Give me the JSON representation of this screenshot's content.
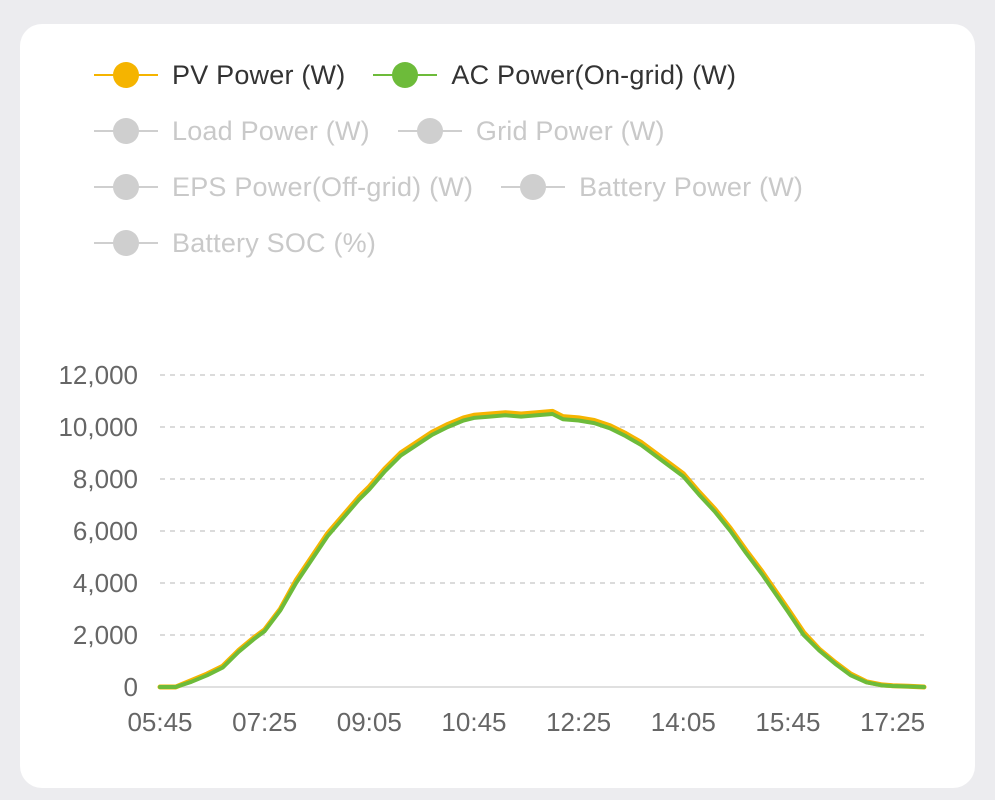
{
  "legend": {
    "items": [
      {
        "label": "PV Power (W)",
        "color": "#f5b400",
        "active": true
      },
      {
        "label": "AC Power(On-grid) (W)",
        "color": "#6dbb3a",
        "active": true
      },
      {
        "label": "Load Power (W)",
        "color": "#cfcfcf",
        "active": false
      },
      {
        "label": "Grid Power (W)",
        "color": "#cfcfcf",
        "active": false
      },
      {
        "label": "EPS Power(Off-grid) (W)",
        "color": "#cfcfcf",
        "active": false
      },
      {
        "label": "Battery Power (W)",
        "color": "#cfcfcf",
        "active": false
      },
      {
        "label": "Battery SOC (%)",
        "color": "#cfcfcf",
        "active": false
      }
    ]
  },
  "chart_data": {
    "type": "line",
    "title": "",
    "xlabel": "",
    "ylabel": "",
    "ylim": [
      0,
      12000
    ],
    "yticks": [
      "0",
      "2,000",
      "4,000",
      "6,000",
      "8,000",
      "10,000",
      "12,000"
    ],
    "xticks": [
      "05:45",
      "07:25",
      "09:05",
      "10:45",
      "12:25",
      "14:05",
      "15:45",
      "17:25"
    ],
    "grid": "horizontal-dashed",
    "x": [
      "05:45",
      "06:00",
      "06:15",
      "06:30",
      "06:45",
      "07:00",
      "07:15",
      "07:25",
      "07:40",
      "07:55",
      "08:10",
      "08:25",
      "08:40",
      "08:55",
      "09:05",
      "09:20",
      "09:35",
      "09:50",
      "10:05",
      "10:20",
      "10:35",
      "10:45",
      "11:00",
      "11:15",
      "11:30",
      "11:45",
      "12:00",
      "12:10",
      "12:25",
      "12:40",
      "12:55",
      "13:10",
      "13:25",
      "13:40",
      "14:05",
      "14:20",
      "14:35",
      "14:50",
      "15:05",
      "15:20",
      "15:45",
      "16:00",
      "16:15",
      "16:30",
      "16:45",
      "17:00",
      "17:15",
      "17:25",
      "17:40",
      "17:55"
    ],
    "series": [
      {
        "name": "PV Power (W)",
        "color": "#f5b400",
        "values": [
          0,
          0,
          250,
          500,
          800,
          1400,
          1900,
          2200,
          3000,
          4100,
          5000,
          5900,
          6600,
          7300,
          7700,
          8400,
          9000,
          9400,
          9800,
          10100,
          10350,
          10450,
          10500,
          10550,
          10500,
          10550,
          10600,
          10400,
          10350,
          10250,
          10050,
          9750,
          9400,
          8950,
          8200,
          7500,
          6850,
          6100,
          5250,
          4450,
          3000,
          2100,
          1450,
          950,
          500,
          200,
          80,
          50,
          30,
          0
        ]
      },
      {
        "name": "AC Power(On-grid) (W)",
        "color": "#6dbb3a",
        "values": [
          0,
          0,
          200,
          450,
          750,
          1350,
          1850,
          2150,
          2950,
          4000,
          4900,
          5800,
          6500,
          7200,
          7600,
          8300,
          8900,
          9300,
          9700,
          10000,
          10250,
          10350,
          10400,
          10450,
          10400,
          10450,
          10500,
          10300,
          10250,
          10150,
          9950,
          9650,
          9300,
          8850,
          8100,
          7400,
          6750,
          6000,
          5150,
          4350,
          2900,
          2000,
          1400,
          900,
          450,
          180,
          60,
          40,
          20,
          0
        ]
      }
    ]
  }
}
